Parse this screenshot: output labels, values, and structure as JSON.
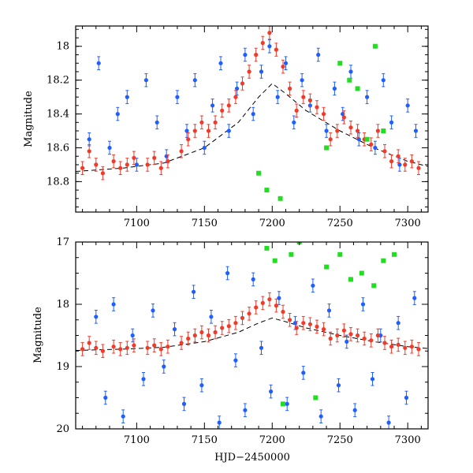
{
  "colors": {
    "blue_series": "#1f5fff",
    "red_series": "#f03a2a",
    "green_series": "#22dd22",
    "frame": "#000000",
    "model_curve": "#000000"
  },
  "chart_data": [
    {
      "type": "scatter",
      "panel": "top",
      "title": "",
      "xlabel": "",
      "ylabel": "Magnitude",
      "xlim": [
        7055,
        7315
      ],
      "ylim": [
        18.98,
        17.88
      ],
      "y_inverted": true,
      "xticks": [
        7100,
        7150,
        7200,
        7250,
        7300
      ],
      "xtick_labels": [
        "7100",
        "7150",
        "7200",
        "7250",
        "7300"
      ],
      "yticks": [
        18.0,
        18.2,
        18.4,
        18.6,
        18.8
      ],
      "ytick_labels": [
        "18",
        "18.2",
        "18.4",
        "18.6",
        "18.8"
      ],
      "grid": false,
      "series": [
        {
          "name": "blue",
          "color": "#1f5fff",
          "marker": "dot-errorbar",
          "x": [
            7065,
            7072,
            7080,
            7086,
            7093,
            7100,
            7107,
            7115,
            7122,
            7130,
            7137,
            7143,
            7150,
            7156,
            7162,
            7168,
            7174,
            7180,
            7186,
            7192,
            7198,
            7204,
            7210,
            7216,
            7222,
            7228,
            7234,
            7240,
            7246,
            7252,
            7258,
            7264,
            7270,
            7276,
            7282,
            7288,
            7294,
            7300,
            7306
          ],
          "y": [
            18.55,
            18.1,
            18.6,
            18.4,
            18.3,
            18.7,
            18.2,
            18.45,
            18.65,
            18.3,
            18.5,
            18.2,
            18.6,
            18.35,
            18.1,
            18.5,
            18.25,
            18.05,
            18.4,
            18.15,
            18.0,
            18.3,
            18.1,
            18.45,
            18.2,
            18.35,
            18.05,
            18.5,
            18.25,
            18.4,
            18.15,
            18.55,
            18.3,
            18.6,
            18.2,
            18.45,
            18.7,
            18.35,
            18.5
          ]
        },
        {
          "name": "red",
          "color": "#f03a2a",
          "marker": "dot-errorbar",
          "x": [
            7060,
            7065,
            7070,
            7075,
            7083,
            7088,
            7093,
            7098,
            7108,
            7113,
            7118,
            7123,
            7133,
            7138,
            7143,
            7148,
            7153,
            7158,
            7163,
            7168,
            7173,
            7178,
            7183,
            7188,
            7193,
            7198,
            7203,
            7208,
            7213,
            7218,
            7223,
            7228,
            7233,
            7238,
            7243,
            7248,
            7253,
            7258,
            7263,
            7268,
            7273,
            7278,
            7283,
            7288,
            7293,
            7298,
            7303,
            7308
          ],
          "y": [
            18.72,
            18.62,
            18.7,
            18.75,
            18.68,
            18.72,
            18.7,
            18.66,
            18.7,
            18.66,
            18.72,
            18.68,
            18.62,
            18.55,
            18.5,
            18.45,
            18.5,
            18.45,
            18.38,
            18.35,
            18.3,
            18.22,
            18.15,
            18.05,
            17.98,
            17.92,
            18.02,
            18.12,
            18.25,
            18.38,
            18.3,
            18.32,
            18.36,
            18.4,
            18.55,
            18.5,
            18.42,
            18.48,
            18.5,
            18.55,
            18.58,
            18.5,
            18.62,
            18.68,
            18.65,
            18.7,
            18.68,
            18.72
          ]
        },
        {
          "name": "green",
          "color": "#22dd22",
          "marker": "square",
          "x": [
            7190,
            7196,
            7206,
            7240,
            7250,
            7257,
            7263,
            7270,
            7276,
            7282
          ],
          "y": [
            18.75,
            18.85,
            18.9,
            18.6,
            18.1,
            18.2,
            18.25,
            18.55,
            18.0,
            18.5
          ]
        }
      ],
      "model_curve": {
        "name": "model",
        "x": [
          7055,
          7090,
          7120,
          7150,
          7175,
          7190,
          7200,
          7210,
          7225,
          7250,
          7275,
          7300,
          7315
        ],
        "y": [
          18.74,
          18.72,
          18.69,
          18.6,
          18.45,
          18.3,
          18.22,
          18.28,
          18.38,
          18.5,
          18.6,
          18.68,
          18.71
        ]
      }
    },
    {
      "type": "scatter",
      "panel": "bottom",
      "title": "",
      "xlabel": "HJD−2450000",
      "ylabel": "Magnitude",
      "xlim": [
        7055,
        7315
      ],
      "ylim": [
        20.0,
        17.0
      ],
      "y_inverted": true,
      "xticks": [
        7100,
        7150,
        7200,
        7250,
        7300
      ],
      "xtick_labels": [
        "7100",
        "7150",
        "7200",
        "7250",
        "7300"
      ],
      "yticks": [
        17,
        18,
        19,
        20
      ],
      "ytick_labels": [
        "17",
        "18",
        "19",
        "20"
      ],
      "grid": false,
      "series": [
        {
          "name": "blue",
          "color": "#1f5fff",
          "marker": "dot-errorbar",
          "x": [
            7070,
            7077,
            7083,
            7090,
            7097,
            7105,
            7112,
            7120,
            7128,
            7135,
            7142,
            7148,
            7155,
            7161,
            7167,
            7173,
            7180,
            7186,
            7192,
            7199,
            7205,
            7211,
            7217,
            7223,
            7230,
            7236,
            7242,
            7249,
            7255,
            7261,
            7267,
            7274,
            7280,
            7286,
            7293,
            7299,
            7305
          ],
          "y": [
            18.2,
            19.5,
            18.0,
            19.8,
            18.5,
            19.2,
            18.1,
            19.0,
            18.4,
            19.6,
            17.8,
            19.3,
            18.2,
            19.9,
            17.5,
            18.9,
            19.7,
            17.6,
            18.7,
            19.4,
            17.9,
            19.6,
            18.3,
            19.1,
            17.7,
            19.8,
            18.1,
            19.3,
            18.6,
            19.7,
            18.0,
            19.2,
            18.5,
            19.9,
            18.3,
            19.5,
            17.9
          ]
        },
        {
          "name": "red",
          "color": "#f03a2a",
          "marker": "dot-errorbar",
          "x": [
            7060,
            7065,
            7070,
            7075,
            7083,
            7088,
            7093,
            7098,
            7108,
            7113,
            7118,
            7123,
            7133,
            7138,
            7143,
            7148,
            7153,
            7158,
            7163,
            7168,
            7173,
            7178,
            7183,
            7188,
            7193,
            7198,
            7203,
            7208,
            7213,
            7218,
            7223,
            7228,
            7233,
            7238,
            7243,
            7248,
            7253,
            7258,
            7263,
            7268,
            7273,
            7278,
            7283,
            7288,
            7293,
            7298,
            7303,
            7308
          ],
          "y": [
            18.72,
            18.62,
            18.7,
            18.75,
            18.68,
            18.72,
            18.7,
            18.66,
            18.7,
            18.66,
            18.72,
            18.68,
            18.62,
            18.55,
            18.5,
            18.45,
            18.5,
            18.45,
            18.38,
            18.35,
            18.3,
            18.22,
            18.15,
            18.05,
            17.98,
            17.92,
            18.02,
            18.12,
            18.25,
            18.38,
            18.3,
            18.32,
            18.36,
            18.4,
            18.55,
            18.5,
            18.42,
            18.48,
            18.5,
            18.55,
            18.58,
            18.5,
            18.62,
            18.68,
            18.65,
            18.7,
            18.68,
            18.72
          ]
        },
        {
          "name": "green",
          "color": "#22dd22",
          "marker": "square",
          "x": [
            7196,
            7202,
            7208,
            7214,
            7220,
            7232,
            7240,
            7250,
            7258,
            7266,
            7275,
            7282,
            7290
          ],
          "y": [
            17.1,
            17.3,
            19.6,
            17.2,
            17.0,
            19.5,
            17.4,
            17.2,
            17.6,
            17.5,
            17.7,
            17.3,
            17.2
          ]
        }
      ],
      "model_curve": {
        "name": "model",
        "x": [
          7055,
          7090,
          7120,
          7150,
          7175,
          7190,
          7200,
          7210,
          7225,
          7250,
          7275,
          7300,
          7315
        ],
        "y": [
          18.74,
          18.72,
          18.69,
          18.6,
          18.45,
          18.3,
          18.22,
          18.28,
          18.38,
          18.5,
          18.6,
          18.68,
          18.71
        ]
      }
    }
  ]
}
